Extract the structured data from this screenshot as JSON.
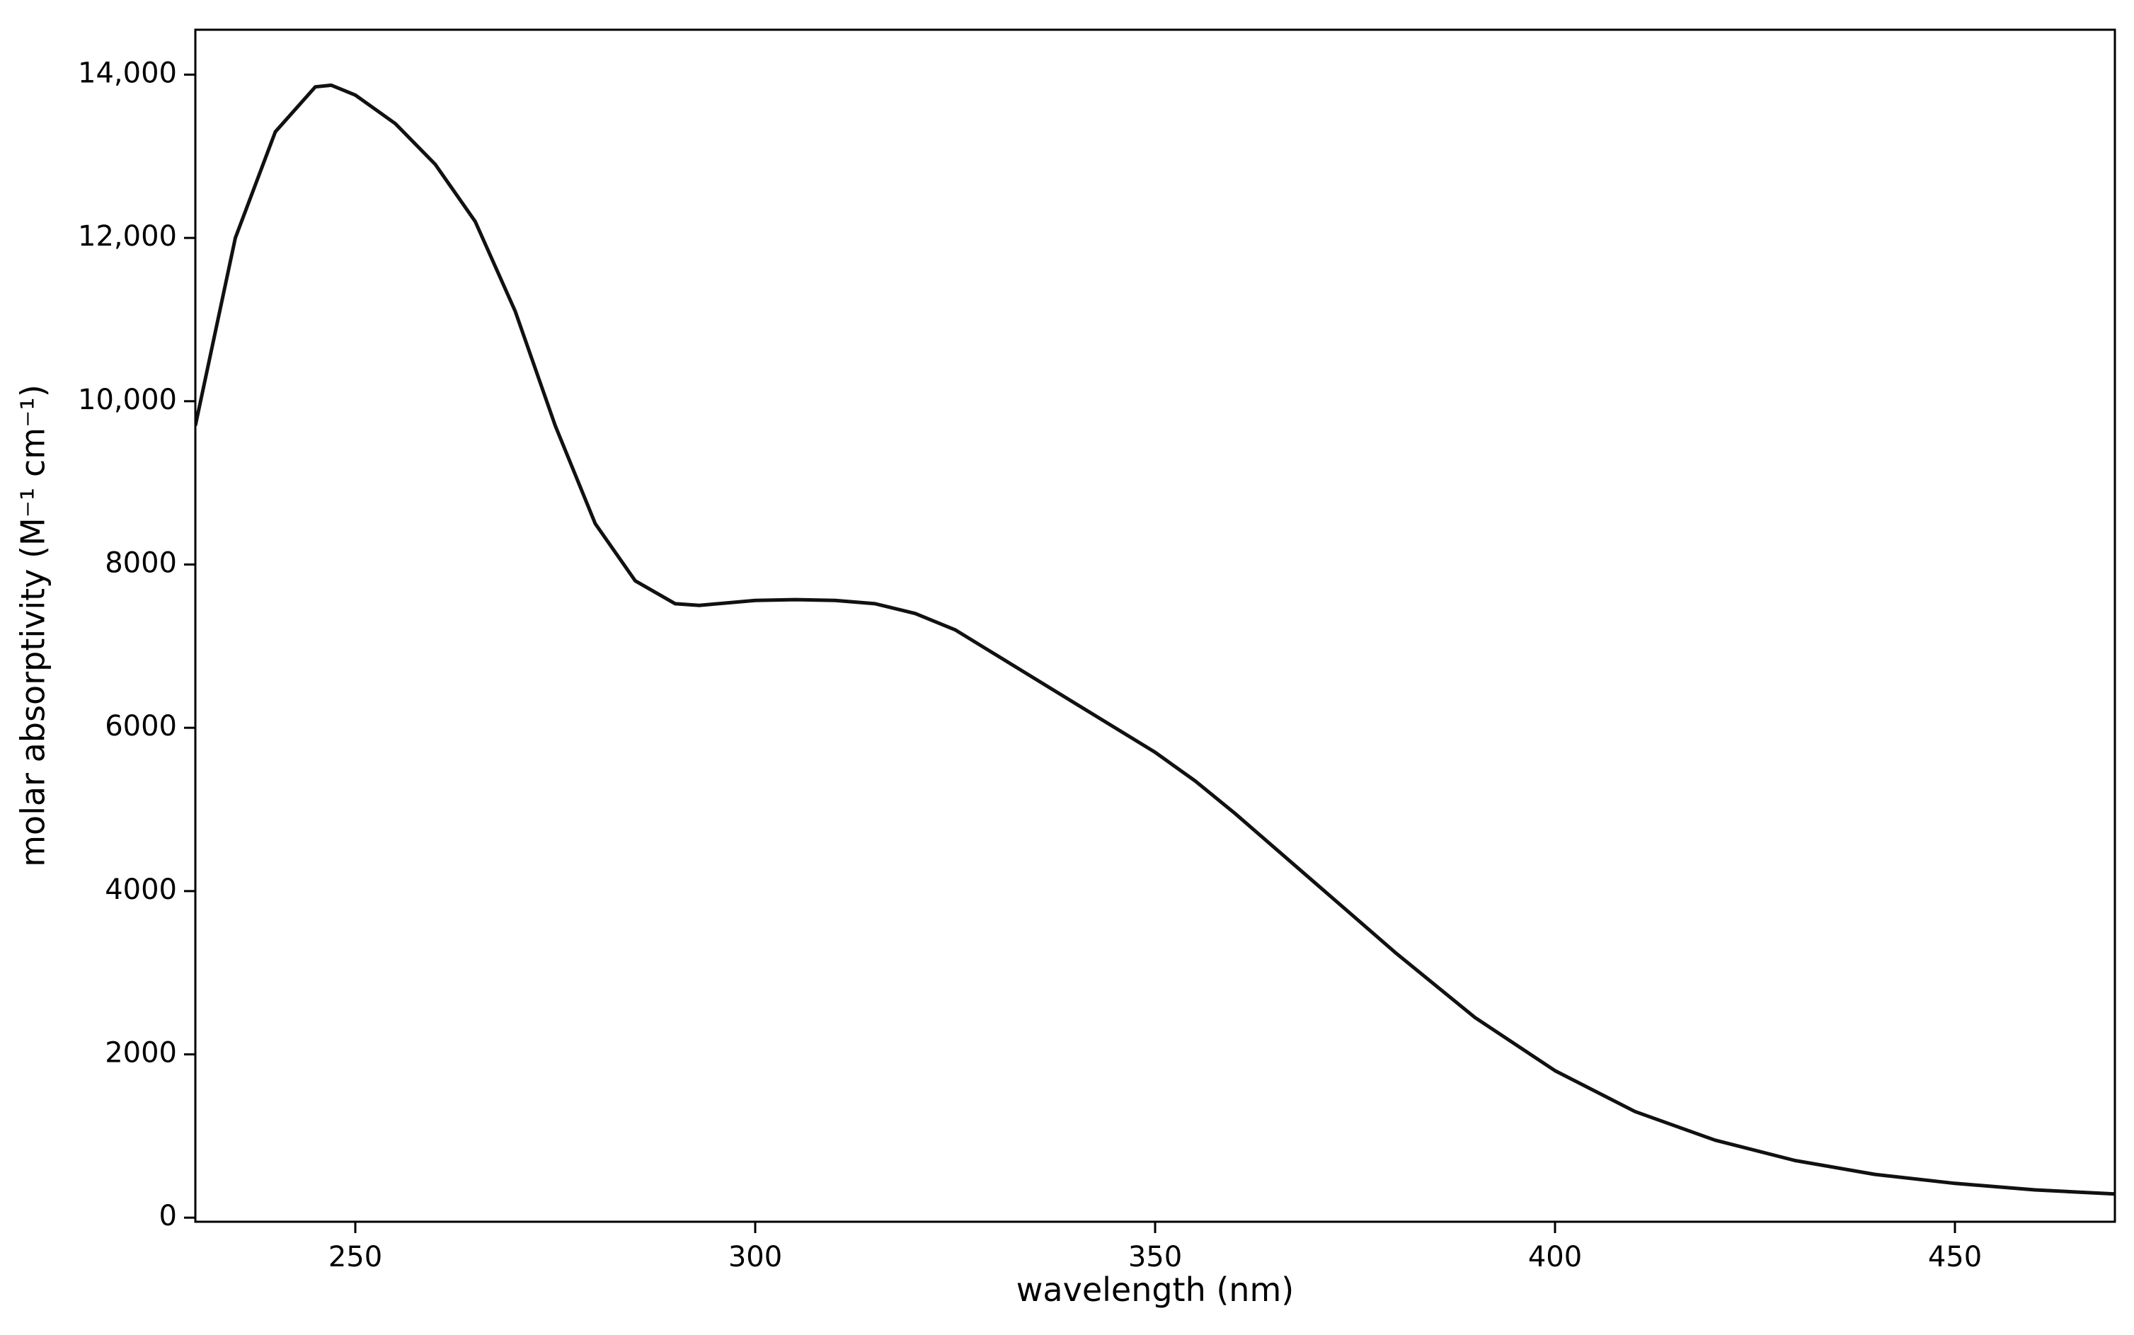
{
  "chart_data": {
    "type": "line",
    "x_label": "wavelength (nm)",
    "y_label": "molar absorptivity (M⁻¹ cm⁻¹)",
    "x": [
      230,
      235,
      240,
      245,
      247,
      250,
      255,
      260,
      265,
      270,
      275,
      280,
      285,
      290,
      293,
      300,
      305,
      310,
      315,
      320,
      325,
      330,
      340,
      350,
      355,
      360,
      370,
      380,
      390,
      400,
      410,
      420,
      430,
      440,
      450,
      460,
      470
    ],
    "values": [
      9700,
      12000,
      13300,
      13850,
      13870,
      13750,
      13400,
      12900,
      12200,
      11100,
      9700,
      8500,
      7800,
      7520,
      7500,
      7560,
      7570,
      7560,
      7520,
      7400,
      7200,
      6900,
      6300,
      5700,
      5350,
      4950,
      4100,
      3250,
      2450,
      1800,
      1300,
      950,
      700,
      530,
      420,
      340,
      290
    ],
    "color": "#111111",
    "xlim": [
      230,
      470
    ],
    "ylim": [
      -50,
      14550
    ],
    "xticks": [
      250,
      300,
      350,
      400,
      450
    ],
    "yticks": [
      0,
      2000,
      4000,
      6000,
      8000,
      {
        "value": 10000,
        "label": "10,000"
      },
      {
        "value": 12000,
        "label": "12,000"
      },
      {
        "value": 14000,
        "label": "14,000"
      }
    ],
    "grid": false
  }
}
